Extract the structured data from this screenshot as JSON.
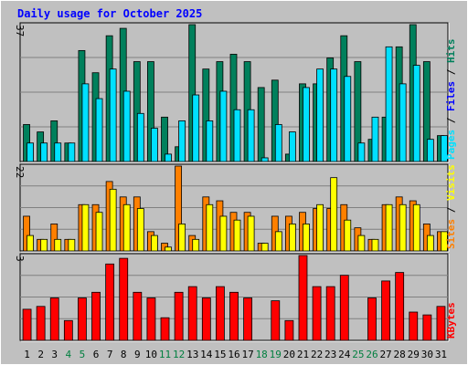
{
  "chart_data": {
    "type": "bar",
    "title": "Daily usage for October 2025",
    "days": [
      "1",
      "2",
      "3",
      "4",
      "5",
      "6",
      "7",
      "8",
      "9",
      "10",
      "11",
      "12",
      "13",
      "14",
      "15",
      "16",
      "17",
      "18",
      "19",
      "20",
      "21",
      "22",
      "23",
      "24",
      "25",
      "26",
      "27",
      "28",
      "29",
      "30",
      "31"
    ],
    "weekend_days": [
      4,
      5,
      11,
      12,
      18,
      19,
      25,
      26
    ],
    "panels": [
      {
        "id": "hits-files-pages",
        "max_label": "37",
        "ymax": 37,
        "legend": [
          "Pages",
          "Files",
          "Hits"
        ],
        "series": [
          {
            "name": "Hits",
            "color": "#00805c",
            "values": [
              10,
              8,
              11,
              5,
              30,
              24,
              34,
              36,
              27,
              27,
              12,
              4,
              37,
              25,
              27,
              29,
              27,
              20,
              22,
              2,
              21,
              21,
              28,
              34,
              27,
              6,
              12,
              31,
              37,
              27,
              7
            ]
          },
          {
            "name": "Files",
            "color": "#00e0ff",
            "values": [
              5,
              5,
              5,
              5,
              21,
              17,
              25,
              19,
              13,
              9,
              2,
              11,
              18,
              11,
              19,
              14,
              14,
              1,
              10,
              8,
              20,
              25,
              25,
              23,
              5,
              12,
              31,
              21,
              26,
              6,
              7
            ]
          },
          {
            "name": "Pages",
            "color": "#00e0ff",
            "values": []
          }
        ]
      },
      {
        "id": "visits-sites",
        "max_label": "22",
        "ymax": 22,
        "legend": [
          "Sites",
          "Visits"
        ],
        "series": [
          {
            "name": "Visits",
            "color": "#ff8000",
            "values": [
              9,
              3,
              7,
              3,
              12,
              12,
              18,
              14,
              14,
              5,
              2,
              22,
              4,
              14,
              13,
              10,
              10,
              2,
              9,
              9,
              10,
              11,
              11,
              12,
              6,
              3,
              12,
              14,
              13,
              7,
              5
            ]
          },
          {
            "name": "Sites",
            "color": "#ffff00",
            "values": [
              4,
              3,
              3,
              3,
              12,
              10,
              16,
              12,
              11,
              4,
              1,
              7,
              3,
              12,
              9,
              8,
              9,
              2,
              5,
              7,
              7,
              12,
              19,
              8,
              4,
              3,
              12,
              12,
              12,
              4,
              5
            ]
          }
        ]
      },
      {
        "id": "kbytes",
        "max_label": "3",
        "ymax": 3,
        "legend": [
          "KBytes"
        ],
        "series": [
          {
            "name": "KBytes",
            "color": "#ff0000",
            "values": [
              1.1,
              1.2,
              1.5,
              0.7,
              1.5,
              1.7,
              2.7,
              2.9,
              1.7,
              1.5,
              0.8,
              1.7,
              1.9,
              1.5,
              1.9,
              1.7,
              1.5,
              0,
              1.4,
              0.7,
              3.0,
              1.9,
              1.9,
              2.3,
              0,
              1.5,
              2.1,
              2.4,
              1.0,
              0.9,
              1.2
            ]
          }
        ]
      }
    ],
    "colors": {
      "background": "#c0c0c0",
      "plot_bg": "#c0c0c0",
      "grid": "#808080",
      "title": "#0000ff",
      "weekday_label": "#000000",
      "weekend_label": "#007f3f",
      "legend_hits": "#00805c",
      "legend_files": "#0000ff",
      "legend_pages": "#00e0ff",
      "legend_visits": "#ffff00",
      "legend_sites": "#ff8000",
      "legend_kbytes": "#ff0000",
      "legend_separator": "#000000"
    },
    "grid": true
  }
}
